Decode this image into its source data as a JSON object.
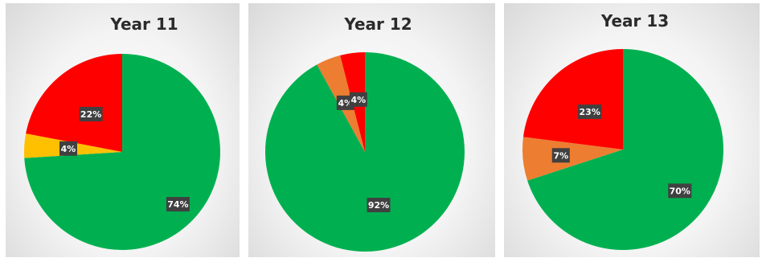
{
  "chart_data": [
    {
      "type": "pie",
      "title": "Year 11",
      "slices": [
        {
          "label": "74%",
          "value": 74,
          "color": "#00b050"
        },
        {
          "label": "4%",
          "value": 4,
          "color": "#ffc000"
        },
        {
          "label": "22%",
          "value": 22,
          "color": "#ff0000"
        }
      ]
    },
    {
      "type": "pie",
      "title": "Year 12",
      "slices": [
        {
          "label": "92%",
          "value": 92,
          "color": "#00b050"
        },
        {
          "label": "4%",
          "value": 4,
          "color": "#ed7d31"
        },
        {
          "label": "4%",
          "value": 4,
          "color": "#ff0000"
        }
      ]
    },
    {
      "type": "pie",
      "title": "Year 13",
      "slices": [
        {
          "label": "70%",
          "value": 70,
          "color": "#00b050"
        },
        {
          "label": "7%",
          "value": 7,
          "color": "#ed7d31"
        },
        {
          "label": "23%",
          "value": 23,
          "color": "#ff0000"
        }
      ]
    }
  ]
}
